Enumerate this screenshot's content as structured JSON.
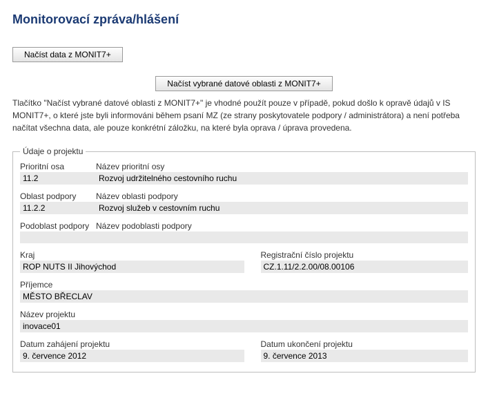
{
  "title": "Monitorovací zpráva/hlášení",
  "btn_load_all": "Načíst data z MONIT7+",
  "btn_load_selected": "Načíst vybrané datové oblasti z MONIT7+",
  "description": "Tlačítko \"Načíst vybrané datové oblasti z MONIT7+\" je vhodné použít pouze v případě, pokud došlo k opravě údajů v IS MONIT7+, o které jste byli informováni během psaní MZ (ze strany poskytovatele podpory / administrátora) a není potřeba načítat všechna data, ale pouze konkrétní záložku, na které byla oprava / úprava provedena.",
  "fieldset_legend": "Údaje o projektu",
  "labels": {
    "priority_axis": "Prioritní osa",
    "priority_axis_name": "Název prioritní osy",
    "support_area": "Oblast podpory",
    "support_area_name": "Název oblasti podpory",
    "subarea": "Podoblast podpory",
    "subarea_name": "Název podoblasti podpory",
    "region": "Kraj",
    "reg_number": "Registrační číslo projektu",
    "recipient": "Příjemce",
    "project_name": "Název projektu",
    "start_date": "Datum zahájení projektu",
    "end_date": "Datum ukončení projektu"
  },
  "values": {
    "priority_axis": "11.2",
    "priority_axis_name": "Rozvoj udržitelného cestovního ruchu",
    "support_area": "11.2.2",
    "support_area_name": "Rozvoj služeb v cestovním ruchu",
    "subarea": "",
    "subarea_name": "",
    "region": "ROP NUTS II Jihovýchod",
    "reg_number": "CZ.1.11/2.2.00/08.00106",
    "recipient": "MĚSTO BŘECLAV",
    "project_name": "inovace01",
    "start_date": "9. července 2012",
    "end_date": "9. července 2013"
  }
}
